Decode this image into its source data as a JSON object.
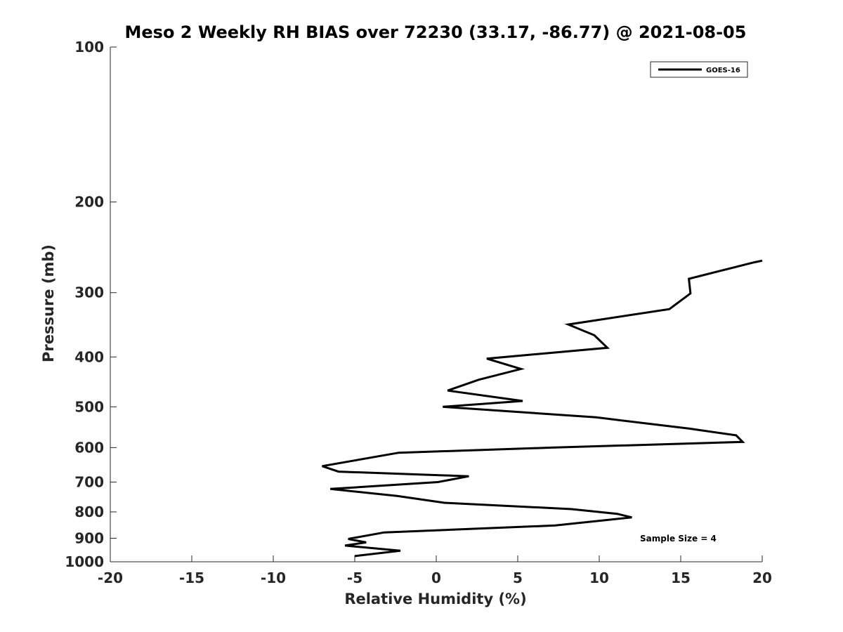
{
  "chart_data": {
    "type": "line",
    "title": "Meso 2 Weekly RH BIAS over 72230 (33.17, -86.77) @ 2021-08-05",
    "xlabel": "Relative Humidity (%)",
    "ylabel": "Pressure (mb)",
    "xlim": [
      -20,
      20
    ],
    "ylim": [
      100,
      1000
    ],
    "y_scale": "log",
    "y_reversed": true,
    "grid": false,
    "legend_position": "top-right",
    "x_ticks": [
      "-20",
      "-15",
      "-10",
      "-5",
      "0",
      "5",
      "10",
      "15",
      "20"
    ],
    "y_ticks": [
      "100",
      "200",
      "300",
      "400",
      "500",
      "600",
      "700",
      "800",
      "900",
      "1000"
    ],
    "annotation": "Sample Size = 4",
    "series": [
      {
        "name": "GOES-16",
        "color": "#000000",
        "points": [
          [
            20.0,
            260
          ],
          [
            19.5,
            262
          ],
          [
            15.5,
            282
          ],
          [
            15.6,
            301
          ],
          [
            14.3,
            323
          ],
          [
            8.1,
            346
          ],
          [
            9.7,
            363
          ],
          [
            10.5,
            384
          ],
          [
            3.1,
            403
          ],
          [
            5.2,
            422
          ],
          [
            2.6,
            443
          ],
          [
            0.7,
            465
          ],
          [
            5.3,
            487
          ],
          [
            0.4,
            500
          ],
          [
            9.8,
            524
          ],
          [
            15.5,
            551
          ],
          [
            18.4,
            568
          ],
          [
            18.8,
            585
          ],
          [
            7.1,
            600
          ],
          [
            -2.3,
            614
          ],
          [
            -7.0,
            652
          ],
          [
            -6.0,
            668
          ],
          [
            2.0,
            682
          ],
          [
            0.1,
            700
          ],
          [
            -6.5,
            722
          ],
          [
            -2.4,
            745
          ],
          [
            0.5,
            768
          ],
          [
            8.3,
            790
          ],
          [
            11.1,
            807
          ],
          [
            12.0,
            820
          ],
          [
            7.3,
            850
          ],
          [
            -3.2,
            877
          ],
          [
            -5.4,
            903
          ],
          [
            -4.3,
            917
          ],
          [
            -5.6,
            930
          ],
          [
            -2.2,
            952
          ],
          [
            -5.0,
            975
          ]
        ]
      }
    ]
  }
}
